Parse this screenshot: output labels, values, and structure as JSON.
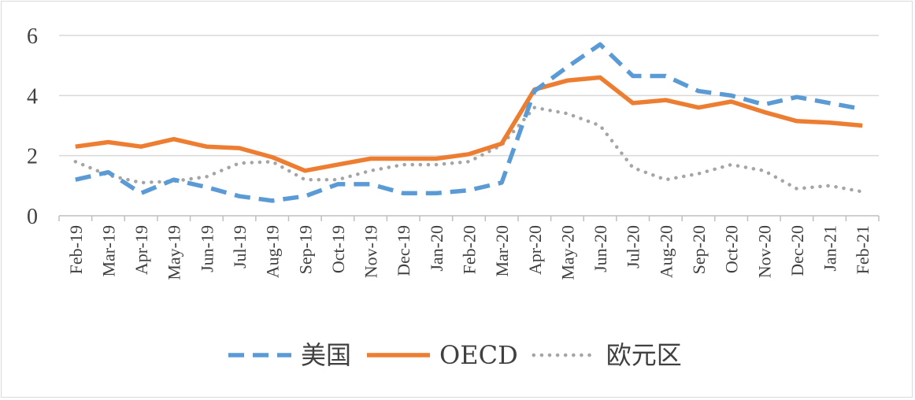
{
  "chart_data": {
    "type": "line",
    "title": "",
    "xlabel": "",
    "ylabel": "",
    "ylim": [
      0,
      6
    ],
    "yticks": [
      "0",
      "2",
      "4",
      "6"
    ],
    "grid": true,
    "legend_position": "bottom",
    "categories": [
      "Feb-19",
      "Mar-19",
      "Apr-19",
      "May-19",
      "Jun-19",
      "Jul-19",
      "Aug-19",
      "Sep-19",
      "Oct-19",
      "Nov-19",
      "Dec-19",
      "Jan-20",
      "Feb-20",
      "Mar-20",
      "Apr-20",
      "May-20",
      "Jun-20",
      "Jul-20",
      "Aug-20",
      "Sep-20",
      "Oct-20",
      "Nov-20",
      "Dec-20",
      "Jan-21",
      "Feb-21"
    ],
    "series": [
      {
        "name": "美国",
        "color": "#5b9bd5",
        "style": "dashed",
        "values": [
          1.2,
          1.45,
          0.75,
          1.2,
          0.95,
          0.65,
          0.5,
          0.65,
          1.05,
          1.05,
          0.75,
          0.75,
          0.85,
          1.1,
          4.15,
          4.95,
          5.7,
          4.65,
          4.65,
          4.15,
          4.0,
          3.7,
          3.95,
          3.75,
          3.55
        ]
      },
      {
        "name": "OECD",
        "color": "#ed7d31",
        "style": "solid",
        "values": [
          2.3,
          2.45,
          2.3,
          2.55,
          2.3,
          2.25,
          1.95,
          1.5,
          1.7,
          1.9,
          1.9,
          1.9,
          2.05,
          2.4,
          4.2,
          4.5,
          4.6,
          3.75,
          3.85,
          3.6,
          3.8,
          3.45,
          3.15,
          3.1,
          3.0
        ]
      },
      {
        "name": "欧元区",
        "color": "#a5a5a5",
        "style": "dotted",
        "values": [
          1.8,
          1.35,
          1.1,
          1.15,
          1.3,
          1.75,
          1.8,
          1.2,
          1.2,
          1.5,
          1.7,
          1.7,
          1.8,
          2.35,
          3.6,
          3.4,
          3.0,
          1.6,
          1.2,
          1.4,
          1.7,
          1.5,
          0.9,
          1.0,
          0.8
        ]
      }
    ]
  }
}
